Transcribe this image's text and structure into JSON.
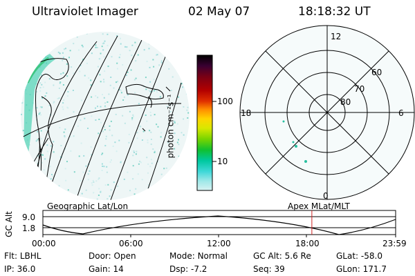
{
  "header": {
    "instrument": "Ultraviolet Imager",
    "date": "02 May 07",
    "time": "18:18:32 UT"
  },
  "colorbar": {
    "unit_label": "photon cm⁻²s⁻¹",
    "ticks": [
      "100",
      "10"
    ],
    "colors": [
      "#000000",
      "#3a0032",
      "#7a0014",
      "#b30000",
      "#e03000",
      "#ff8c00",
      "#ffd400",
      "#d8e800",
      "#78d400",
      "#10c030",
      "#00c8a0",
      "#3fd8d8",
      "#9ee8e8",
      "#d8f2f2"
    ]
  },
  "polar_plot": {
    "mlt_labels": {
      "top": "12",
      "left": "18",
      "right": "6",
      "bottom": "0"
    },
    "lat_labels": [
      "60",
      "70",
      "80"
    ]
  },
  "timeline": {
    "axis_label": "GC Alt",
    "y_ticks": [
      "9.0",
      "1.8"
    ],
    "left_caption": "Geographic Lat/Lon",
    "right_caption": "Apex MLat/MLT",
    "x_ticks": [
      "00:00",
      "06:00",
      "12:00",
      "18:00",
      "23:59"
    ],
    "marker_time": "18:18",
    "marker_color": "#cc2222"
  },
  "info": {
    "row1": [
      {
        "label": "Flt:",
        "value": "LBHL"
      },
      {
        "label": "Door:",
        "value": "Open"
      },
      {
        "label": "Mode:",
        "value": "Normal"
      },
      {
        "label": "GC Alt:",
        "value": "5.6 Re"
      },
      {
        "label": "GLat:",
        "value": "-58.0"
      }
    ],
    "row2": [
      {
        "label": "IP:",
        "value": "36.0"
      },
      {
        "label": "Gain:",
        "value": "14"
      },
      {
        "label": "Dsp:",
        "value": "-7.2"
      },
      {
        "label": "Seq:",
        "value": "39"
      },
      {
        "label": "GLon:",
        "value": "171.7"
      }
    ]
  }
}
